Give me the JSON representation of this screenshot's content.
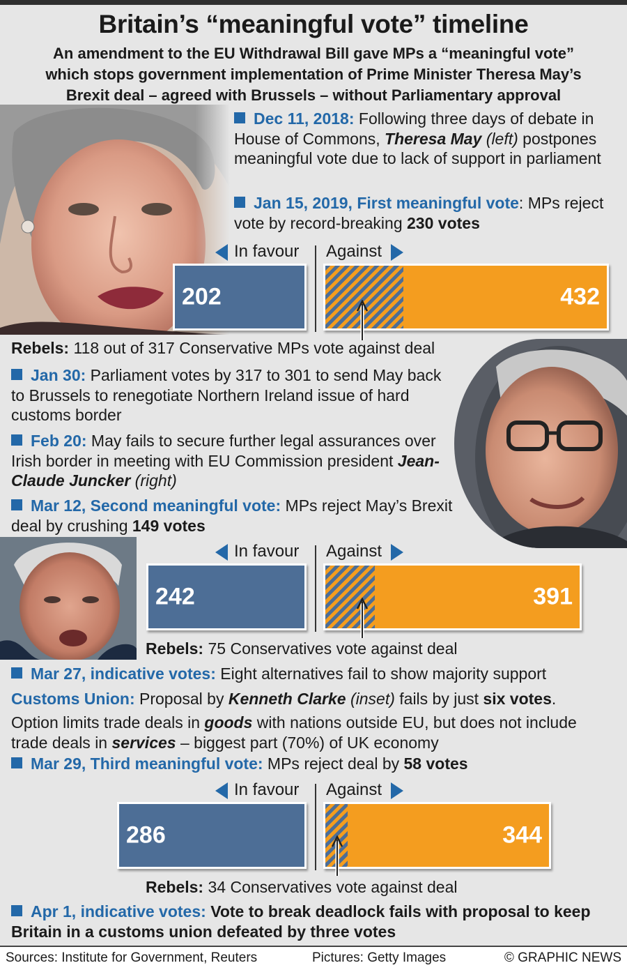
{
  "title": "Britain’s “meaningful vote” timeline",
  "subtitle_lines": [
    "An amendment to the EU Withdrawal Bill gave MPs a “meaningful vote”",
    "which stops government implementation of Prime Minister Theresa May’s",
    "Brexit deal – agreed with Brussels – without Parliamentary approval"
  ],
  "photos": {
    "may": "Theresa May",
    "juncker": "Jean-Claude Juncker",
    "clarke": "Kenneth Clarke"
  },
  "events": {
    "dec11": {
      "date": "Dec 11, 2018:",
      "t1": " Following three days of debate in House of Commons, ",
      "name": "Theresa May",
      "t2": " (left)",
      "t3": " postpones meaningful vote due to lack of support in parliament"
    },
    "jan15": {
      "date": "Jan 15, 2019, First meaningful vote",
      "t1": ": MPs reject vote by record-breaking ",
      "emph": "230 votes"
    },
    "jan30": {
      "date": "Jan 30:",
      "t1": " Parliament votes by 317 to 301 to send May back to Brussels to renegotiate Northern Ireland issue of hard customs border"
    },
    "feb20": {
      "date": "Feb 20:",
      "t1": " May fails to secure further legal assurances over Irish border in meeting with EU Commission president ",
      "name": "Jean-Claude Juncker",
      "t2": " (right)"
    },
    "mar12": {
      "date": "Mar 12, Second meaningful vote:",
      "t1": " MPs reject May’s Brexit deal by crushing ",
      "emph": "149 votes"
    },
    "mar27": {
      "date": "Mar 27, indicative votes:",
      "t1": " Eight alternatives fail to show majority support"
    },
    "customs": {
      "head": "Customs Union:",
      "t1": " Proposal by ",
      "name": "Kenneth Clarke",
      "t2": " (inset)",
      "t3": " fails by just ",
      "emph": "six votes",
      "t4": "."
    },
    "option": {
      "t1": "Option limits trade deals in ",
      "e1": "goods",
      "t2": " with nations outside EU, but does not include trade deals in ",
      "e2": "services",
      "t3": " – biggest part (70%) of UK economy"
    },
    "mar29": {
      "date": "Mar 29, Third meaningful vote:",
      "t1": " MPs reject deal by ",
      "emph": "58 votes"
    },
    "apr1": {
      "date": "Apr 1, indicative votes:",
      "t1": " Vote to break deadlock fails with proposal to keep Britain in a customs union defeated by three votes"
    }
  },
  "votes": [
    {
      "favour": 202,
      "against": 432,
      "rebels": 118,
      "rebels_head": "Rebels:",
      "rebels_text": " 118 out of 317 Conservative MPs vote against deal"
    },
    {
      "favour": 242,
      "against": 391,
      "rebels": 75,
      "rebels_head": "Rebels:",
      "rebels_text": " 75 Conservatives vote against deal"
    },
    {
      "favour": 286,
      "against": 344,
      "rebels": 34,
      "rebels_head": "Rebels:",
      "rebels_text": " 34 Conservatives vote against deal"
    }
  ],
  "vote_labels": {
    "favour": "In favour",
    "against": "Against"
  },
  "footer": {
    "sources": "Sources: Institute for Government, Reuters",
    "pictures": "Pictures: Getty Images",
    "credit": "© GRAPHIC NEWS"
  },
  "colors": {
    "accent": "#2368a8",
    "favour": "#4d6e96",
    "against": "#f49d1f",
    "background": "#e6e6e6"
  }
}
